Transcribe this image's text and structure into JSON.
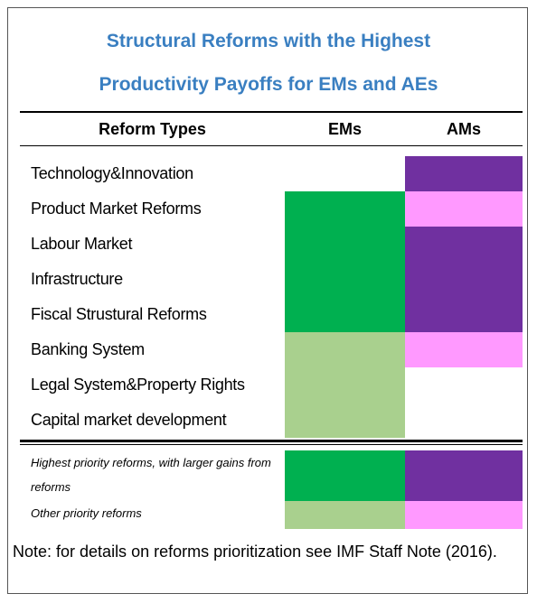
{
  "title": [
    "Structural Reforms with the Highest",
    "Productivity Payoffs for EMs and AEs"
  ],
  "title_color": "#3a7fc1",
  "table": {
    "header": [
      "Reform Types",
      "EMs",
      "AMs"
    ],
    "rows": [
      {
        "label": "Technology&Innovation",
        "ems": null,
        "ams": "#7030a0"
      },
      {
        "label": "Product Market Reforms",
        "ems": "#00b050",
        "ams": "#ff99ff"
      },
      {
        "label": "Labour Market",
        "ems": "#00b050",
        "ams": "#7030a0"
      },
      {
        "label": "Infrastructure",
        "ems": "#00b050",
        "ams": "#7030a0"
      },
      {
        "label": "Fiscal Strustural Reforms",
        "ems": "#00b050",
        "ams": "#7030a0"
      },
      {
        "label": "Banking System",
        "ems": "#a9d08e",
        "ams": "#ff99ff"
      },
      {
        "label": "Legal System&Property Rights",
        "ems": "#a9d08e",
        "ams": null
      },
      {
        "label": "Capital market development",
        "ems": "#a9d08e",
        "ams": null
      }
    ]
  },
  "legend": [
    {
      "label": "Highest priority reforms, with larger gains from reforms",
      "ems": "#00b050",
      "ams": "#7030a0"
    },
    {
      "label": "Other priority reforms",
      "ems": "#a9d08e",
      "ams": "#ff99ff"
    }
  ],
  "note": "Note: for details on reforms prioritization see IMF Staff Note (2016)."
}
